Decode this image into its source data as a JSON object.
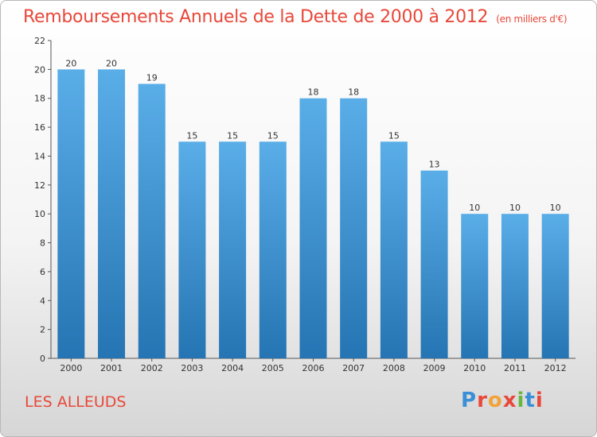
{
  "chart_data": {
    "type": "bar",
    "title": "Remboursements Annuels de la Dette de 2000 à 2012",
    "subtitle": "(en milliers d'€)",
    "categories": [
      "2000",
      "2001",
      "2002",
      "2003",
      "2004",
      "2005",
      "2006",
      "2007",
      "2008",
      "2009",
      "2010",
      "2011",
      "2012"
    ],
    "values": [
      20,
      20,
      19,
      15,
      15,
      15,
      18,
      18,
      15,
      13,
      10,
      10,
      10
    ],
    "ylim": [
      0,
      22
    ],
    "yticks": [
      0,
      2,
      4,
      6,
      8,
      10,
      12,
      14,
      16,
      18,
      20,
      22
    ],
    "grid": false,
    "bar_color_top": "#5aaee8",
    "bar_color_bottom": "#2574b3"
  },
  "footer": {
    "city": "LES ALLEUDS",
    "logo": {
      "letters": [
        "P",
        "r",
        "o",
        "x",
        "i",
        "t",
        "i"
      ],
      "colors": [
        "#3a8fd6",
        "#e8483a",
        "#f2a23a",
        "#e8483a",
        "#68b840",
        "#3a8fd6",
        "#e8483a"
      ]
    }
  }
}
